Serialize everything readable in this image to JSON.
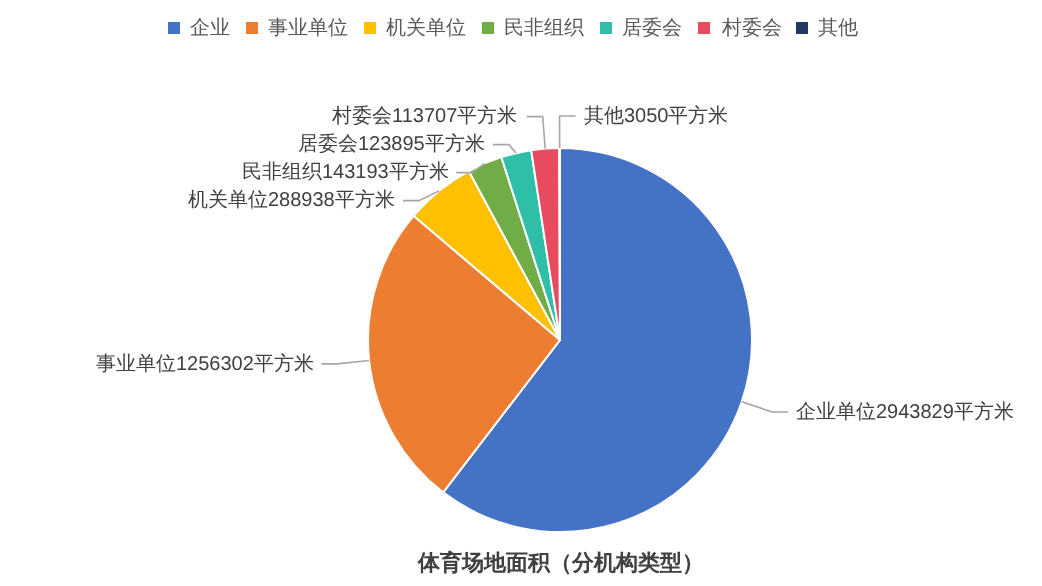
{
  "chart_data": {
    "type": "pie",
    "title": "体育场地面积（分机构类型）",
    "legend": "top",
    "categories": [
      "企业",
      "事业单位",
      "机关单位",
      "民非组织",
      "居委会",
      "村委会",
      "其他"
    ],
    "values": [
      2943829,
      1256302,
      288938,
      143193,
      123895,
      113707,
      3050
    ],
    "value_labels": [
      "企业单位2943829平方米",
      "事业单位1256302平方米",
      "机关单位288938平方米",
      "民非组织143193平方米",
      "居委会123895平方米",
      "村委会113707平方米",
      "其他3050平方米"
    ],
    "colors": [
      "#4472c4",
      "#ed7d31",
      "#ffc000",
      "#70ad47",
      "#2fbfa8",
      "#e84a5f",
      "#1f3864"
    ]
  }
}
